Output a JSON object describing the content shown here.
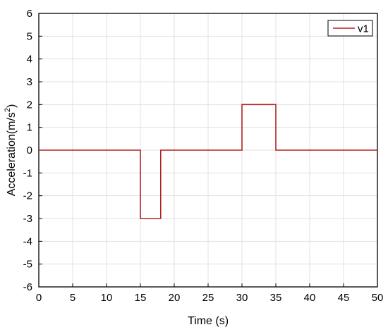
{
  "chart_data": {
    "type": "line",
    "xlabel": "Time (s)",
    "ylabel_main": "Acceleration(m/s",
    "ylabel_sup": "2",
    "ylabel_close": ")",
    "xlim": [
      0,
      50
    ],
    "ylim": [
      -6,
      6
    ],
    "x_ticks": [
      0,
      5,
      10,
      15,
      20,
      25,
      30,
      35,
      40,
      45,
      50
    ],
    "y_ticks": [
      6,
      5,
      4,
      3,
      2,
      1,
      0,
      -1,
      -2,
      -3,
      -4,
      -5,
      -6
    ],
    "grid": true,
    "legend_position": "top-right",
    "series": [
      {
        "name": "v1",
        "color": "#b22222",
        "x": [
          0,
          15,
          15,
          18,
          18,
          30,
          30,
          35,
          35,
          50
        ],
        "y": [
          0,
          0,
          -3,
          -3,
          0,
          0,
          2,
          2,
          0,
          0
        ]
      }
    ]
  }
}
